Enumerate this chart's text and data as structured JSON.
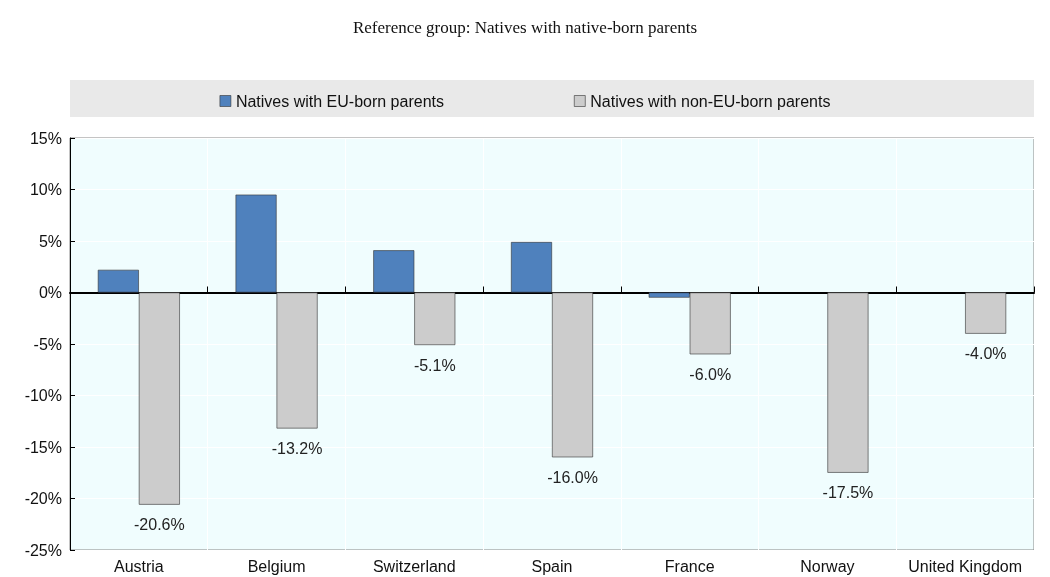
{
  "chart_data": {
    "type": "bar",
    "title": "Reference group: Natives with native-born parents",
    "categories": [
      "Austria",
      "Belgium",
      "Switzerland",
      "Spain",
      "France",
      "Norway",
      "United Kingdom"
    ],
    "series": [
      {
        "name": "Natives with EU-born parents",
        "color": "#4f81bd",
        "values": [
          2.2,
          9.5,
          4.1,
          4.9,
          -0.5,
          null,
          null
        ]
      },
      {
        "name": "Natives with non-EU-born parents",
        "color": "#cccccc",
        "values": [
          -20.6,
          -13.2,
          -5.1,
          -16.0,
          -6.0,
          -17.5,
          -4.0
        ],
        "value_labels": [
          "-20.6%",
          "-13.2%",
          "-5.1%",
          "-16.0%",
          "-6.0%",
          "-17.5%",
          "-4.0%"
        ]
      }
    ],
    "ylim": [
      -25,
      15
    ],
    "yticks": [
      {
        "value": -25,
        "label": "-25%"
      },
      {
        "value": -20,
        "label": "-20%"
      },
      {
        "value": -15,
        "label": "-15%"
      },
      {
        "value": -10,
        "label": "-10%"
      },
      {
        "value": -5,
        "label": "-5%"
      },
      {
        "value": 0,
        "label": "0%"
      },
      {
        "value": 5,
        "label": "5%"
      },
      {
        "value": 10,
        "label": "10%"
      },
      {
        "value": 15,
        "label": "15%"
      }
    ],
    "grid": true,
    "legend": "top"
  }
}
